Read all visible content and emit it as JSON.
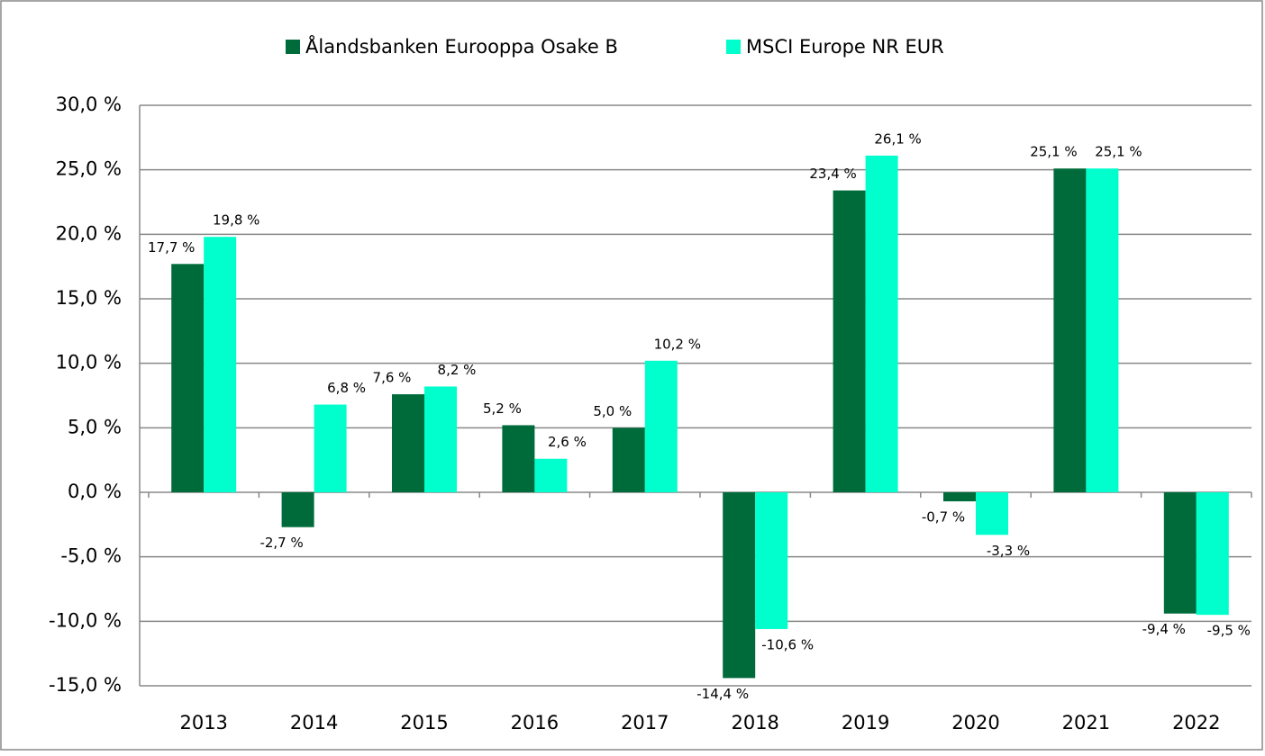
{
  "chart_data": {
    "type": "bar",
    "categories": [
      "2013",
      "2014",
      "2015",
      "2016",
      "2017",
      "2018",
      "2019",
      "2020",
      "2021",
      "2022"
    ],
    "series": [
      {
        "name": "Ålandsbanken Eurooppa Osake B",
        "color": "#006b3a",
        "values": [
          17.7,
          -2.7,
          7.6,
          5.2,
          5.0,
          -14.4,
          23.4,
          -0.7,
          25.1,
          -9.4
        ],
        "value_labels": [
          "17,7 %",
          "-2,7 %",
          "7,6 %",
          "5,2 %",
          "5,0 %",
          "-14,4 %",
          "23,4 %",
          "-0,7 %",
          "25,1 %",
          "-9,4 %"
        ]
      },
      {
        "name": "MSCI Europe NR EUR",
        "color": "#00ffcc",
        "values": [
          19.8,
          6.8,
          8.2,
          2.6,
          10.2,
          -10.6,
          26.1,
          -3.3,
          25.1,
          -9.5
        ],
        "value_labels": [
          "19,8 %",
          "6,8 %",
          "8,2 %",
          "2,6 %",
          "10,2 %",
          "-10,6 %",
          "26,1 %",
          "-3,3 %",
          "25,1 %",
          "-9,5 %"
        ]
      }
    ],
    "ylim": [
      -15,
      30
    ],
    "yticks": [
      {
        "value": -15,
        "label": "-15,0 %"
      },
      {
        "value": -10,
        "label": "-10,0 %"
      },
      {
        "value": -5,
        "label": "-5,0 %"
      },
      {
        "value": 0,
        "label": "0,0 %"
      },
      {
        "value": 5,
        "label": "5,0 %"
      },
      {
        "value": 10,
        "label": "10,0 %"
      },
      {
        "value": 15,
        "label": "15,0 %"
      },
      {
        "value": 20,
        "label": "20,0 %"
      },
      {
        "value": 25,
        "label": "25,0 %"
      },
      {
        "value": 30,
        "label": "30,0 %"
      }
    ],
    "grid": true
  }
}
